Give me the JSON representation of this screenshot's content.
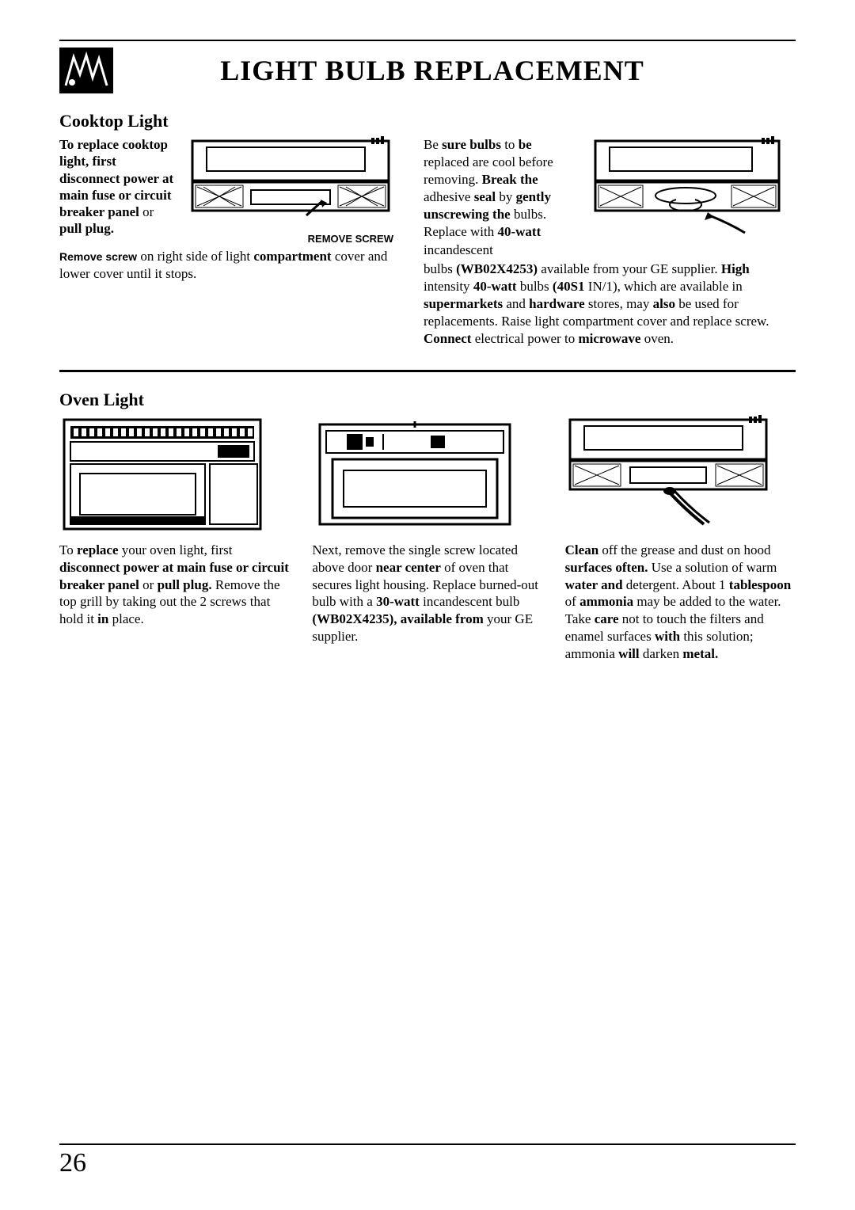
{
  "title": "LIGHT BULB REPLACEMENT",
  "page_number": "26",
  "cooktop": {
    "heading": "Cooktop Light",
    "left_text_html": "<b>To replace cooktop light, first disconnect power at main fuse or circuit breaker panel</b> or <b>pull plug.</b>",
    "caption": "REMOVE SCREW",
    "remove_screw_lead": "Remove screw",
    "remove_screw_rest": " on right side of light <b>compartment</b> cover and lower cover until it stops.",
    "right_top_html": "Be <b>sure bulbs</b> to <b>be</b> replaced are cool before removing. <b>Break the</b> adhesive <b>seal</b> by <b>gently unscrewing the</b> bulbs. Replace with <b>40-watt</b> incandescent",
    "right_cont_html": "bulbs <b>(WB02X4253)</b> available from your GE supplier. <b>High</b> intensity <b>40-watt</b> bulbs <b>(40S1</b> IN/1), which are available in <b>supermarkets</b> and <b>hardware</b> stores, may <b>also</b> be used for replacements. Raise light compartment cover and replace screw. <b>Connect</b> electrical power to <b>microwave</b> oven."
  },
  "oven": {
    "heading": "Oven Light",
    "col1_html": "To <b>replace</b> your oven light, first <b>disconnect power at main fuse or circuit breaker panel</b> or <b>pull plug.</b> Remove the top grill by taking out the 2 screws that hold it <b>in</b> place.",
    "col2_html": "Next, remove the single screw located above door <b>near center</b> of oven that secures light housing. Replace burned-out bulb with a <b>30-watt</b> incandescent bulb <b>(WB02X4235), available from</b> your GE supplier.",
    "col3_html": "<b>Clean</b> off the grease and dust on hood <b>surfaces often.</b> Use a solution of warm <b>water and</b> detergent. About 1 <b>tablespoon</b> of <b>ammonia</b> may be added to the water. Take <b>care</b> not to touch the filters and enamel surfaces <b>with</b> this solution; ammonia <b>will</b> darken <b>metal.</b>"
  },
  "colors": {
    "text": "#000000",
    "bg": "#ffffff"
  }
}
